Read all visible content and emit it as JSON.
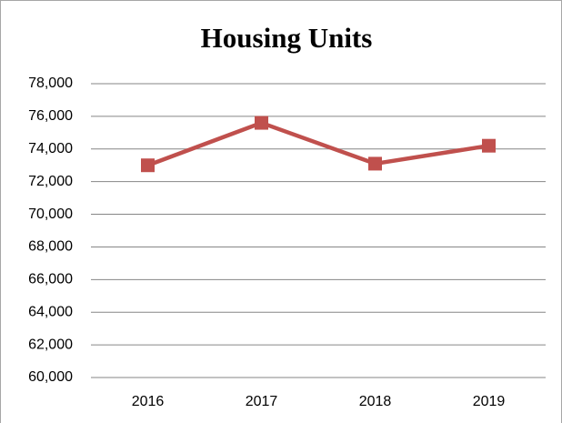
{
  "chart_data": {
    "type": "line",
    "title": "Housing Units",
    "categories": [
      "2016",
      "2017",
      "2018",
      "2019"
    ],
    "series": [
      {
        "name": "Housing Units",
        "color": "#c0504d",
        "values": [
          73000,
          75600,
          73100,
          74200
        ]
      }
    ],
    "ylim": [
      60000,
      78000
    ],
    "yticks": [
      {
        "value": 60000,
        "label": "60,000"
      },
      {
        "value": 62000,
        "label": "62,000"
      },
      {
        "value": 64000,
        "label": "64,000"
      },
      {
        "value": 66000,
        "label": "66,000"
      },
      {
        "value": 68000,
        "label": "68,000"
      },
      {
        "value": 70000,
        "label": "70,000"
      },
      {
        "value": 72000,
        "label": "72,000"
      },
      {
        "value": 74000,
        "label": "74,000"
      },
      {
        "value": 76000,
        "label": "76,000"
      },
      {
        "value": 78000,
        "label": "78,000"
      }
    ],
    "grid": true
  }
}
